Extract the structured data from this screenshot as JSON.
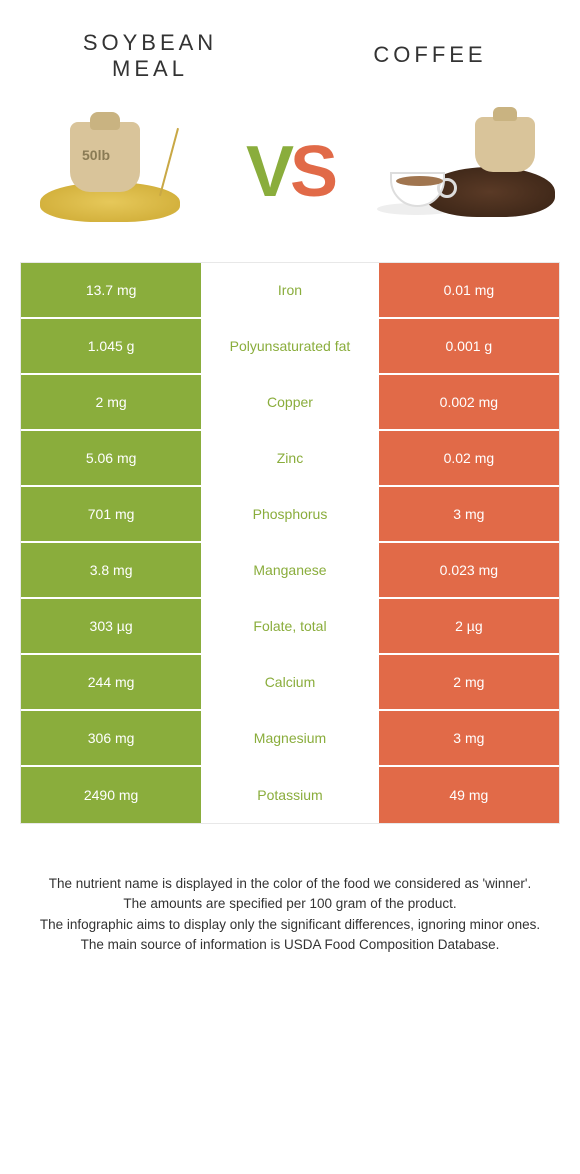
{
  "header": {
    "left_title": "SOYBEAN MEAL",
    "right_title": "COFFEE",
    "vs_v": "V",
    "vs_s": "S",
    "sack_label": "50lb"
  },
  "colors": {
    "left": "#8aad3c",
    "right": "#e16a48",
    "left_text": "#8aad3c",
    "right_text": "#e16a48"
  },
  "rows": [
    {
      "left": "13.7 mg",
      "name": "Iron",
      "right": "0.01 mg",
      "winner": "left"
    },
    {
      "left": "1.045 g",
      "name": "Polyunsaturated fat",
      "right": "0.001 g",
      "winner": "left"
    },
    {
      "left": "2 mg",
      "name": "Copper",
      "right": "0.002 mg",
      "winner": "left"
    },
    {
      "left": "5.06 mg",
      "name": "Zinc",
      "right": "0.02 mg",
      "winner": "left"
    },
    {
      "left": "701 mg",
      "name": "Phosphorus",
      "right": "3 mg",
      "winner": "left"
    },
    {
      "left": "3.8 mg",
      "name": "Manganese",
      "right": "0.023 mg",
      "winner": "left"
    },
    {
      "left": "303 µg",
      "name": "Folate, total",
      "right": "2 µg",
      "winner": "left"
    },
    {
      "left": "244 mg",
      "name": "Calcium",
      "right": "2 mg",
      "winner": "left"
    },
    {
      "left": "306 mg",
      "name": "Magnesium",
      "right": "3 mg",
      "winner": "left"
    },
    {
      "left": "2490 mg",
      "name": "Potassium",
      "right": "49 mg",
      "winner": "left"
    }
  ],
  "footer": {
    "line1": "The nutrient name is displayed in the color of the food we considered as 'winner'.",
    "line2": "The amounts are specified per 100 gram of the product.",
    "line3": "The infographic aims to display only the significant differences, ignoring minor ones.",
    "line4": "The main source of information is USDA Food Composition Database."
  }
}
